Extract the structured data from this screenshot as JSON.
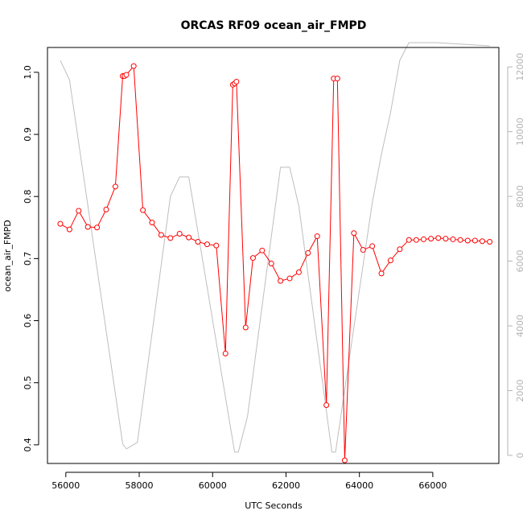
{
  "chart_data": {
    "type": "line",
    "title": "ORCAS RF09 ocean_air_FMPD",
    "xlabel": "UTC Seconds",
    "ylabel": "ocean_air_FMPD",
    "xlim": [
      55500,
      67800
    ],
    "ylim": [
      0.37,
      1.04
    ],
    "y2lim": [
      -250,
      12600
    ],
    "grid": false,
    "x_ticks": [
      56000,
      58000,
      60000,
      62000,
      64000,
      66000
    ],
    "x_tick_labels": [
      "56000",
      "58000",
      "60000",
      "62000",
      "64000",
      "66000"
    ],
    "y_ticks": [
      0.4,
      0.5,
      0.6,
      0.7,
      0.8,
      0.9,
      1.0
    ],
    "y_tick_labels": [
      "0.4",
      "0.5",
      "0.6",
      "0.7",
      "0.8",
      "0.9",
      "1.0"
    ],
    "y2_ticks": [
      0,
      2000,
      4000,
      6000,
      8000,
      10000,
      12000
    ],
    "y2_tick_labels": [
      "0",
      "2000",
      "4000",
      "6000",
      "8000",
      "10000",
      "12000"
    ],
    "series": [
      {
        "axis": "left",
        "color": "#ff0000",
        "style": "line-with-circle-markers",
        "x": [
          55850,
          56100,
          56350,
          56600,
          56850,
          57100,
          57350,
          57550,
          57600,
          57650,
          57850,
          58100,
          58350,
          58600,
          58850,
          59100,
          59350,
          59600,
          59850,
          60100,
          60350,
          60550,
          60600,
          60650,
          60900,
          61100,
          61350,
          61600,
          61850,
          62100,
          62350,
          62600,
          62850,
          63100,
          63300,
          63400,
          63600,
          63850,
          64100,
          64350,
          64600,
          64850,
          65100,
          65350,
          65550,
          65750,
          65950,
          66150,
          66350,
          66550,
          66750,
          66950,
          67150,
          67350,
          67550
        ],
        "y": [
          0.756,
          0.747,
          0.777,
          0.751,
          0.75,
          0.779,
          0.816,
          0.994,
          0.994,
          0.996,
          1.01,
          0.778,
          0.758,
          0.738,
          0.733,
          0.74,
          0.734,
          0.727,
          0.723,
          0.721,
          0.547,
          0.98,
          0.982,
          0.985,
          0.589,
          0.701,
          0.713,
          0.692,
          0.664,
          0.668,
          0.678,
          0.709,
          0.736,
          0.464,
          0.99,
          0.99,
          0.375,
          0.741,
          0.714,
          0.72,
          0.676,
          0.697,
          0.715,
          0.73,
          0.73,
          0.731,
          0.732,
          0.733,
          0.732,
          0.731,
          0.73,
          0.729,
          0.729,
          0.728,
          0.727
        ]
      },
      {
        "axis": "right",
        "color": "#bebebe",
        "style": "line",
        "x": [
          55850,
          56100,
          57550,
          57650,
          57950,
          58850,
          59100,
          59350,
          60600,
          60700,
          60950,
          61850,
          62100,
          62350,
          63250,
          63350,
          64350,
          64600,
          64850,
          65100,
          65350,
          66100,
          67550
        ],
        "y": [
          12200,
          11600,
          350,
          200,
          400,
          8000,
          8600,
          8600,
          100,
          100,
          1200,
          8900,
          8900,
          7700,
          100,
          100,
          7800,
          9300,
          10600,
          12200,
          12750,
          12750,
          12650
        ]
      }
    ]
  }
}
